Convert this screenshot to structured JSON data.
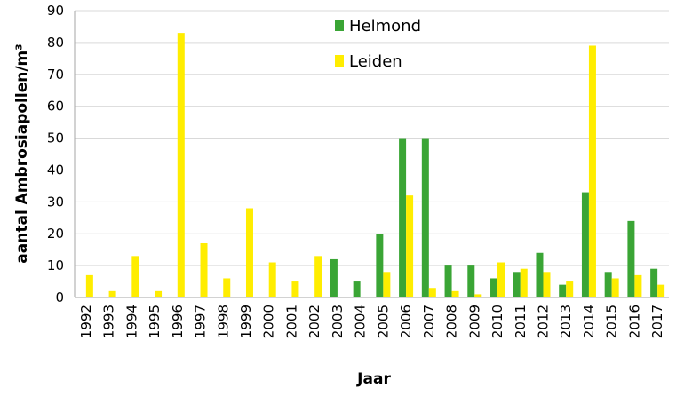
{
  "chart_data": {
    "type": "bar",
    "categories": [
      "1992",
      "1993",
      "1994",
      "1995",
      "1996",
      "1997",
      "1998",
      "1999",
      "2000",
      "2001",
      "2002",
      "2003",
      "2004",
      "2005",
      "2006",
      "2007",
      "2008",
      "2009",
      "2010",
      "2011",
      "2012",
      "2013",
      "2014",
      "2015",
      "2016",
      "2017"
    ],
    "series": [
      {
        "name": "Helmond",
        "color": "#3aa535",
        "values": [
          0,
          0,
          0,
          0,
          0,
          0,
          0,
          0,
          0,
          0,
          0,
          12,
          5,
          20,
          50,
          50,
          10,
          10,
          6,
          8,
          14,
          4,
          33,
          8,
          24,
          9
        ]
      },
      {
        "name": "Leiden",
        "color": "#ffed00",
        "values": [
          7,
          2,
          13,
          2,
          83,
          17,
          6,
          28,
          11,
          5,
          13,
          0,
          0,
          8,
          32,
          3,
          2,
          1,
          11,
          9,
          8,
          5,
          79,
          6,
          7,
          4
        ]
      }
    ],
    "xlabel": "Jaar",
    "ylabel": "aantal Ambrosiapollen/m³",
    "ylim": [
      0,
      90
    ],
    "yticks": [
      "0",
      "10",
      "20",
      "30",
      "40",
      "50",
      "60",
      "70",
      "80",
      "90"
    ],
    "grid": true,
    "legend_position": "top-center"
  }
}
